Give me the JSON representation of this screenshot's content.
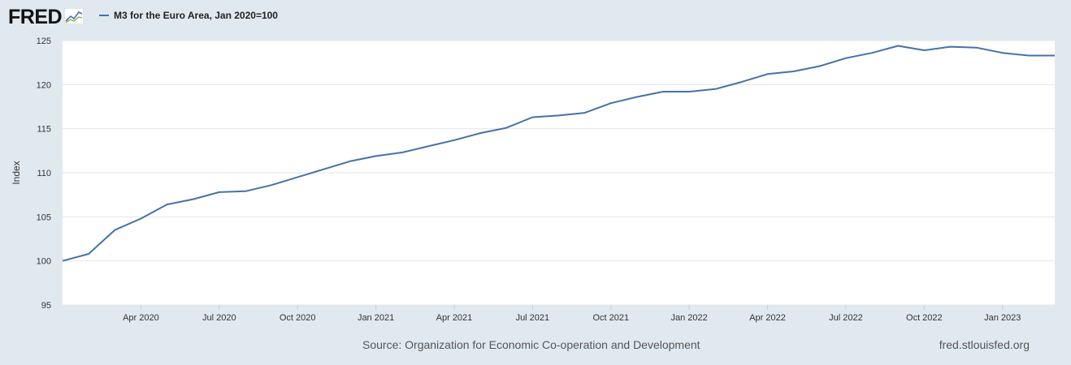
{
  "brand": {
    "name": "FRED",
    "mark_icon": "line-chart-icon"
  },
  "legend": {
    "label": "M3 for the Euro Area, Jan 2020=100",
    "color": "#4572a7"
  },
  "footer": {
    "source": "Source: Organization for Economic Co-operation and Development",
    "site": "fred.stlouisfed.org"
  },
  "colors": {
    "background": "#e1e9f0",
    "plot_bg": "#ffffff",
    "grid": "#e6e6e6",
    "line": "#4572a7"
  },
  "chart_data": {
    "type": "line",
    "title": "",
    "xlabel": "",
    "ylabel": "Index",
    "ylim": [
      95,
      125
    ],
    "yticks": [
      95,
      100,
      105,
      110,
      115,
      120,
      125
    ],
    "grid": true,
    "legend_position": "top-left",
    "x_ticks": [
      {
        "date": "2020-04",
        "label": "Apr 2020"
      },
      {
        "date": "2020-07",
        "label": "Jul 2020"
      },
      {
        "date": "2020-10",
        "label": "Oct 2020"
      },
      {
        "date": "2021-01",
        "label": "Jan 2021"
      },
      {
        "date": "2021-04",
        "label": "Apr 2021"
      },
      {
        "date": "2021-07",
        "label": "Jul 2021"
      },
      {
        "date": "2021-10",
        "label": "Oct 2021"
      },
      {
        "date": "2022-01",
        "label": "Jan 2022"
      },
      {
        "date": "2022-04",
        "label": "Apr 2022"
      },
      {
        "date": "2022-07",
        "label": "Jul 2022"
      },
      {
        "date": "2022-10",
        "label": "Oct 2022"
      },
      {
        "date": "2023-01",
        "label": "Jan 2023"
      }
    ],
    "series": [
      {
        "name": "M3 for the Euro Area, Jan 2020=100",
        "x": [
          "2020-01",
          "2020-02",
          "2020-03",
          "2020-04",
          "2020-05",
          "2020-06",
          "2020-07",
          "2020-08",
          "2020-09",
          "2020-10",
          "2020-11",
          "2020-12",
          "2021-01",
          "2021-02",
          "2021-03",
          "2021-04",
          "2021-05",
          "2021-06",
          "2021-07",
          "2021-08",
          "2021-09",
          "2021-10",
          "2021-11",
          "2021-12",
          "2022-01",
          "2022-02",
          "2022-03",
          "2022-04",
          "2022-05",
          "2022-06",
          "2022-07",
          "2022-08",
          "2022-09",
          "2022-10",
          "2022-11",
          "2022-12",
          "2023-01",
          "2023-02",
          "2023-03"
        ],
        "values": [
          100.0,
          100.8,
          103.5,
          104.8,
          106.4,
          107.0,
          107.8,
          107.9,
          108.6,
          109.5,
          110.4,
          111.3,
          111.9,
          112.3,
          113.0,
          113.7,
          114.5,
          115.1,
          116.3,
          116.5,
          116.8,
          117.9,
          118.6,
          119.2,
          119.2,
          119.5,
          120.3,
          121.2,
          121.5,
          122.1,
          123.0,
          123.6,
          124.4,
          123.9,
          124.3,
          124.2,
          123.6,
          123.3,
          123.3
        ]
      }
    ]
  }
}
